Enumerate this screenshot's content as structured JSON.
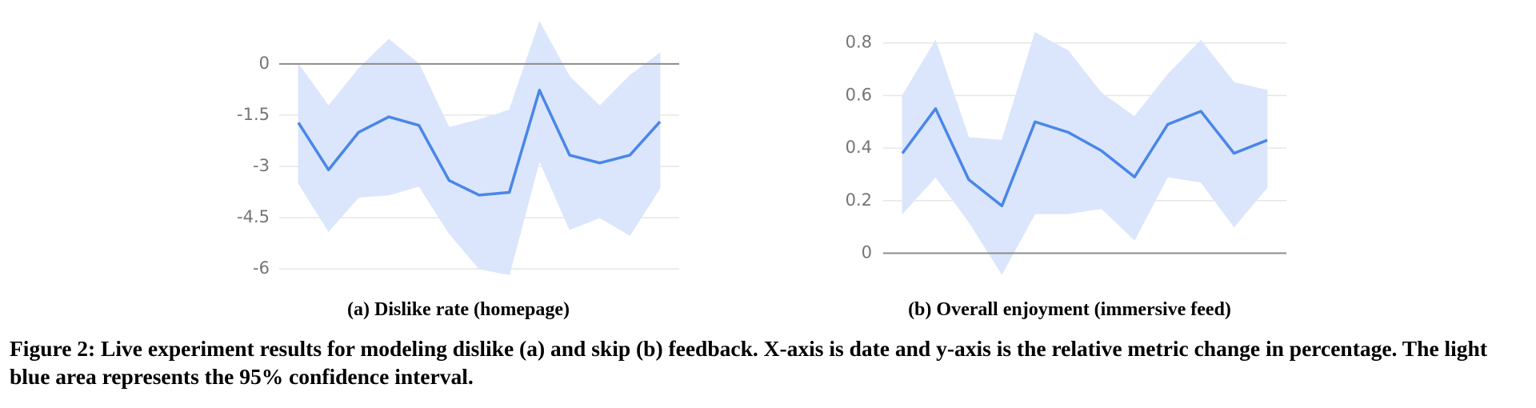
{
  "chart_data": [
    {
      "type": "line",
      "title": "(a) Dislike rate (homepage)",
      "categories": [
        null,
        null,
        null,
        null,
        null,
        null,
        null,
        null,
        null,
        null,
        null,
        null,
        null
      ],
      "values": [
        -1.72,
        -3.1,
        -2.0,
        -1.55,
        -1.8,
        -3.41,
        -3.84,
        -3.76,
        -0.77,
        -2.67,
        -2.9,
        -2.67,
        -1.69
      ],
      "upper": [
        0,
        -1.23,
        -0.14,
        0.72,
        0,
        -1.86,
        -1.63,
        -1.35,
        1.23,
        -0.37,
        -1.23,
        -0.34,
        0.32
      ],
      "lower": [
        -3.5,
        -4.9,
        -3.9,
        -3.84,
        -3.58,
        -4.96,
        -6.0,
        -6.17,
        -2.84,
        -4.85,
        -4.5,
        -5.02,
        -3.64
      ],
      "color": "#4a86e8",
      "band_color": "#dbe6fc",
      "ylim": [
        -6.3,
        1.4
      ],
      "yticks": [
        0,
        -1.5,
        -3,
        -4.5,
        -6
      ],
      "grid": true
    },
    {
      "type": "line",
      "title": "(b) Overall enjoyment (immersive feed)",
      "categories": [
        null,
        null,
        null,
        null,
        null,
        null,
        null,
        null,
        null,
        null,
        null,
        null
      ],
      "values": [
        0.38,
        0.55,
        0.28,
        0.18,
        0.5,
        0.46,
        0.39,
        0.29,
        0.49,
        0.54,
        0.38,
        0.43
      ],
      "upper": [
        0.6,
        0.81,
        0.44,
        0.43,
        0.84,
        0.77,
        0.61,
        0.52,
        0.68,
        0.81,
        0.65,
        0.62
      ],
      "lower": [
        0.15,
        0.29,
        0.12,
        -0.08,
        0.15,
        0.15,
        0.17,
        0.05,
        0.29,
        0.27,
        0.1,
        0.25
      ],
      "color": "#4a86e8",
      "band_color": "#dbe6fc",
      "ylim": [
        -0.09,
        0.86
      ],
      "yticks": [
        0.8,
        0.6,
        0.4,
        0.2,
        0
      ],
      "grid": true
    }
  ],
  "caption": "Figure 2: Live experiment results for modeling dislike (a) and skip (b) feedback. X-axis is date and y-axis is the relative metric change in percentage. The light blue area represents the 95% confidence interval."
}
